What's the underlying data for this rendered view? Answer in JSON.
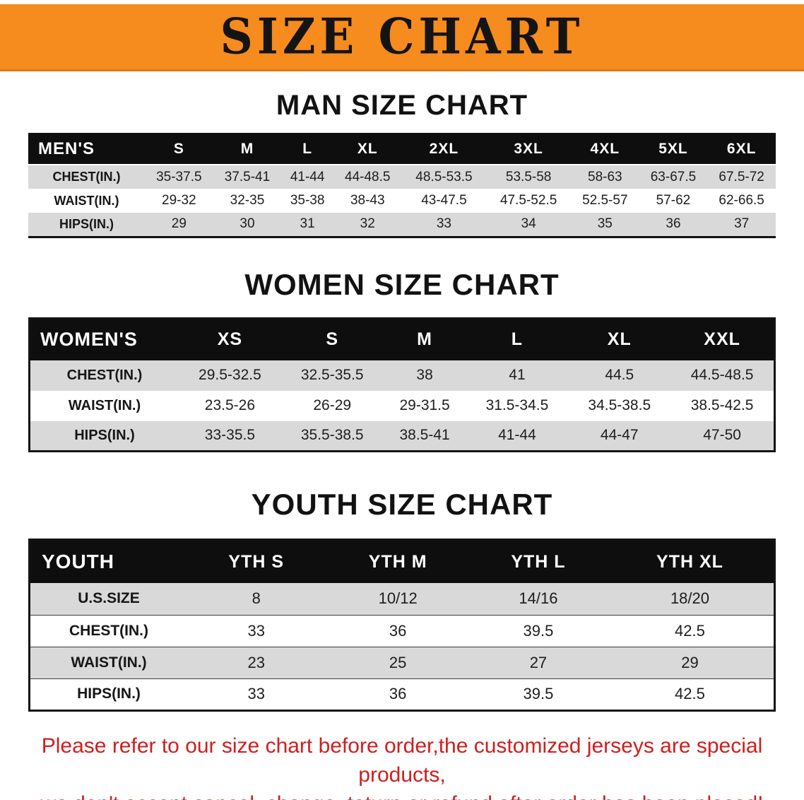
{
  "banner": {
    "title": "SIZE CHART"
  },
  "colors": {
    "banner_bg": "#f68b1e",
    "table_header_bg": "#0e0e0e",
    "row_alt_gray": "#d9d9d9",
    "disclaimer_red": "#cf1e1e"
  },
  "men": {
    "heading": "MAN SIZE CHART",
    "header": [
      "MEN'S",
      "S",
      "M",
      "L",
      "XL",
      "2XL",
      "3XL",
      "4XL",
      "5XL",
      "6XL"
    ],
    "rows": [
      [
        "CHEST(IN.)",
        "35-37.5",
        "37.5-41",
        "41-44",
        "44-48.5",
        "48.5-53.5",
        "53.5-58",
        "58-63",
        "63-67.5",
        "67.5-72"
      ],
      [
        "WAIST(IN.)",
        "29-32",
        "32-35",
        "35-38",
        "38-43",
        "43-47.5",
        "47.5-52.5",
        "52.5-57",
        "57-62",
        "62-66.5"
      ],
      [
        "HIPS(IN.)",
        "29",
        "30",
        "31",
        "32",
        "33",
        "34",
        "35",
        "36",
        "37"
      ]
    ]
  },
  "women": {
    "heading": "WOMEN SIZE CHART",
    "header": [
      "WOMEN'S",
      "XS",
      "S",
      "M",
      "L",
      "XL",
      "XXL"
    ],
    "rows": [
      [
        "CHEST(IN.)",
        "29.5-32.5",
        "32.5-35.5",
        "38",
        "41",
        "44.5",
        "44.5-48.5"
      ],
      [
        "WAIST(IN.)",
        "23.5-26",
        "26-29",
        "29-31.5",
        "31.5-34.5",
        "34.5-38.5",
        "38.5-42.5"
      ],
      [
        "HIPS(IN.)",
        "33-35.5",
        "35.5-38.5",
        "38.5-41",
        "41-44",
        "44-47",
        "47-50"
      ]
    ]
  },
  "youth": {
    "heading": "YOUTH SIZE CHART",
    "header": [
      "YOUTH",
      "YTH S",
      "YTH M",
      "YTH L",
      "YTH XL"
    ],
    "rows": [
      [
        "U.S.SIZE",
        "8",
        "10/12",
        "14/16",
        "18/20"
      ],
      [
        "CHEST(IN.)",
        "33",
        "36",
        "39.5",
        "42.5"
      ],
      [
        "WAIST(IN.)",
        "23",
        "25",
        "27",
        "29"
      ],
      [
        "HIPS(IN.)",
        "33",
        "36",
        "39.5",
        "42.5"
      ]
    ]
  },
  "disclaimer": {
    "line1": "Please refer to our size chart before order,the customized jerseys are special products,",
    "line2": "we don't accept cancel, change, teturn or refund after order has been placed!"
  }
}
